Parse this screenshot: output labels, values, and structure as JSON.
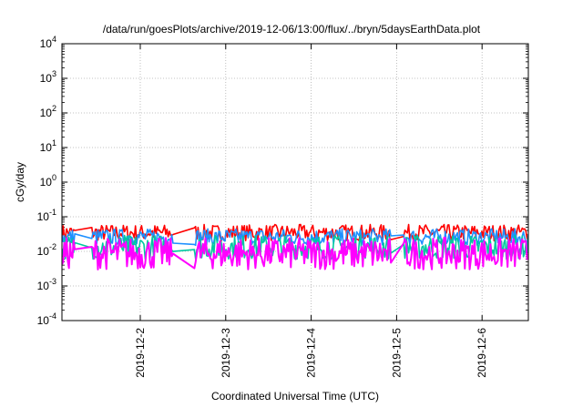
{
  "chart_data": {
    "type": "line",
    "title": "/data/run/goesPlots/archive/2019-12-06/13:00/flux/../bryn/5daysEarthData.plot",
    "xlabel": "Coordinated Universal Time (UTC)",
    "ylabel": "cGy/day",
    "yscale": "log",
    "ylim": [
      0.0001,
      10000
    ],
    "yticks": [
      {
        "value": 0.0001,
        "base": "10",
        "exp": "-4"
      },
      {
        "value": 0.001,
        "base": "10",
        "exp": "-3"
      },
      {
        "value": 0.01,
        "base": "10",
        "exp": "-2"
      },
      {
        "value": 0.1,
        "base": "10",
        "exp": "-1"
      },
      {
        "value": 1,
        "base": "10",
        "exp": "0"
      },
      {
        "value": 10,
        "base": "10",
        "exp": "1"
      },
      {
        "value": 100,
        "base": "10",
        "exp": "2"
      },
      {
        "value": 1000,
        "base": "10",
        "exp": "3"
      },
      {
        "value": 10000,
        "base": "10",
        "exp": "4"
      }
    ],
    "xlim": [
      "2019-12-01T02:00",
      "2019-12-06T13:00"
    ],
    "xticks": [
      "2019-12-2",
      "2019-12-3",
      "2019-12-4",
      "2019-12-5",
      "2019-12-6"
    ],
    "grid": true,
    "series": [
      {
        "color": "#ff0000",
        "band": [
          0.02,
          0.06
        ]
      },
      {
        "color": "#1e90ff",
        "band": [
          0.015,
          0.045
        ]
      },
      {
        "color": "#00c8a0",
        "band": [
          0.006,
          0.03
        ]
      },
      {
        "color": "#ff00ff",
        "band": [
          0.003,
          0.025
        ]
      }
    ]
  }
}
